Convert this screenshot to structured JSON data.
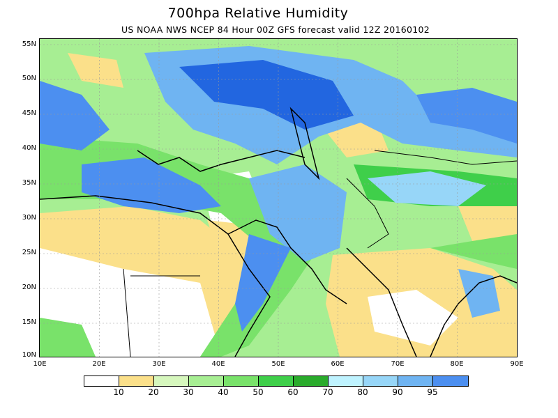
{
  "title": "700hpa Relative Humidity",
  "subtitle": "US NOAA NWS NCEP 84 Hour 00Z GFS forecast valid 12Z 20160102",
  "map": {
    "lat_labels": [
      "55N",
      "50N",
      "45N",
      "40N",
      "35N",
      "30N",
      "25N",
      "20N",
      "15N",
      "10N"
    ],
    "lon_labels": [
      "10E",
      "20E",
      "30E",
      "40E",
      "50E",
      "60E",
      "70E",
      "80E",
      "90E"
    ],
    "lon_range": [
      10,
      90
    ],
    "lat_range": [
      10,
      56
    ]
  },
  "colorbar": {
    "colors": [
      "#ffffff",
      "#fbe08a",
      "#d6f7bd",
      "#a7ee93",
      "#79e26a",
      "#3fcf4a",
      "#2aab2c",
      "#bff3ff",
      "#97d6f8",
      "#6fb4f2",
      "#4c8ff0",
      "#2266e0"
    ],
    "labels": [
      "10",
      "20",
      "30",
      "40",
      "50",
      "60",
      "70",
      "80",
      "90",
      "95"
    ]
  },
  "palette": {
    "land_outline": "#000000",
    "very_dry": "#ffffff",
    "dry": "#fbe08a",
    "moist": "#79e26a",
    "wet": "#3fcf4a",
    "humid": "#4c8ff0",
    "saturated": "#2266e0"
  }
}
